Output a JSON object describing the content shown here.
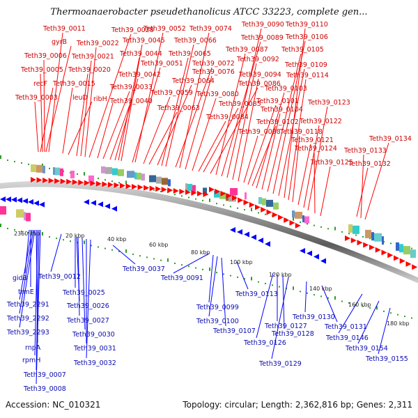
{
  "title": "Thermoanaerobacter pseudethanolicus ATCC 33223, complete gen...",
  "footer": {
    "accession": "Accession: NC_010321",
    "topology": "Topology: circular; Length: 2,362,816 bp; Genes: 2,311"
  },
  "scale_labels": [
    "2360 kbp",
    "20 kbp",
    "40 kbp",
    "60 kbp",
    "80 kbp",
    "100 kbp",
    "120 kbp",
    "140 kbp",
    "160 kbp",
    "180 kbp"
  ],
  "forward_genes": [
    "Teth39_0003",
    "recF",
    "Teth39_0005",
    "Teth39_0006",
    "gyrB",
    "Teth39_0011",
    "Teth39_0015",
    "leuD",
    "Teth39_0020",
    "Teth39_0021",
    "Teth39_0022",
    "Teth39_0028",
    "ribH",
    "Teth39_0033",
    "Teth39_0040",
    "Teth39_0042",
    "Teth39_0044",
    "Teth39_0045",
    "Teth39_0051",
    "Teth39_0052",
    "Teth39_0059",
    "Teth39_0063",
    "Teth39_0064",
    "Teth39_0065",
    "Teth39_0066",
    "Teth39_0072",
    "Teth39_0074",
    "Teth39_0076",
    "Teth39_0080",
    "Teth39_0084",
    "Teth39_0085",
    "Teth39_0086",
    "Teth39_0087",
    "Teth39_0089",
    "Teth39_0090",
    "Teth39_0092",
    "Teth39_0094",
    "Teth39_0098",
    "Teth39_0101",
    "Teth39_0102",
    "Teth39_0103",
    "Teth39_0104",
    "Teth39_0105",
    "Teth39_0106",
    "Teth39_0109",
    "Teth39_0110",
    "Teth39_0114",
    "Teth39_0118",
    "Teth39_0121",
    "Teth39_0122",
    "Teth39_0123",
    "Teth39_0124",
    "Teth39_0125",
    "Teth39_0132",
    "Teth39_0133",
    "Teth39_0134"
  ],
  "reverse_genes": [
    "gidB",
    "trmE",
    "Teth39_2291",
    "Teth39_2292",
    "Teth39_2293",
    "rnpA",
    "rpmH",
    "Teth39_0007",
    "Teth39_0008",
    "Teth39_0012",
    "Teth39_0025",
    "Teth39_0026",
    "Teth39_0027",
    "Teth39_0030",
    "Teth39_0031",
    "Teth39_0032",
    "Teth39_0037",
    "Teth39_0091",
    "Teth39_0099",
    "Teth39_0100",
    "Teth39_0107",
    "Teth39_0113",
    "Teth39_0126",
    "Teth39_0127",
    "Teth39_0128",
    "Teth39_0129",
    "Teth39_0130",
    "Teth39_0131",
    "Teth39_0146",
    "Teth39_0154",
    "Teth39_0155"
  ],
  "colors": {
    "forward": "#ff0000",
    "reverse": "#0000ff",
    "forward_label": "#cc0000",
    "reverse_label": "#0a0ab0",
    "tick": "#2e9b2e",
    "backbone": "#888888"
  }
}
